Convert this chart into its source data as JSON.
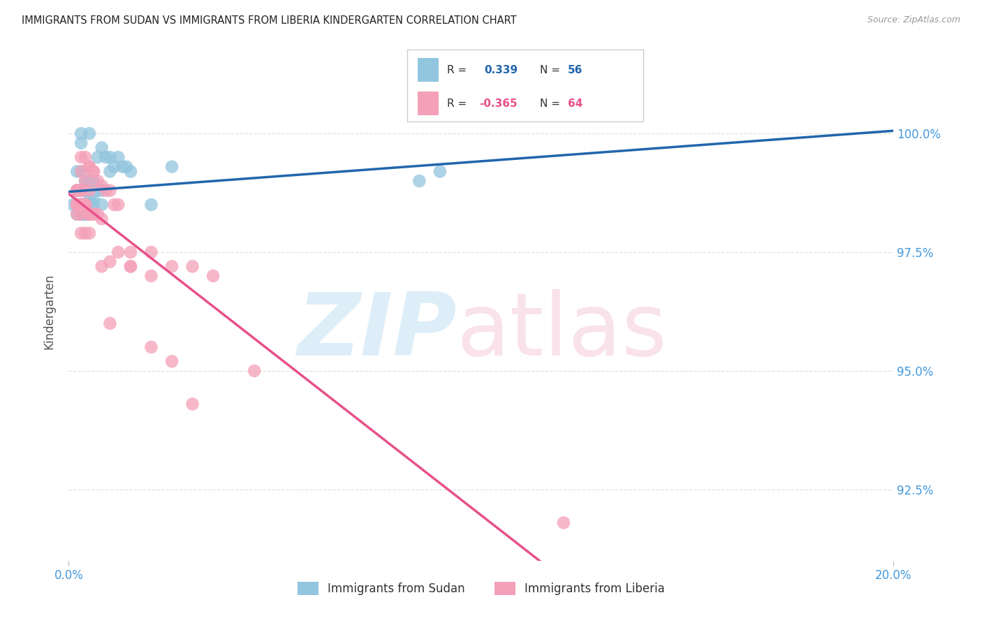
{
  "title": "IMMIGRANTS FROM SUDAN VS IMMIGRANTS FROM LIBERIA KINDERGARTEN CORRELATION CHART",
  "source": "Source: ZipAtlas.com",
  "ylabel": "Kindergarten",
  "y_ticks": [
    92.5,
    95.0,
    97.5,
    100.0
  ],
  "y_tick_labels": [
    "92.5%",
    "95.0%",
    "97.5%",
    "100.0%"
  ],
  "xlim": [
    0.0,
    20.0
  ],
  "ylim": [
    91.0,
    101.5
  ],
  "legend_sudan_R": "0.339",
  "legend_sudan_N": "56",
  "legend_liberia_R": "-0.365",
  "legend_liberia_N": "64",
  "color_sudan": "#92c5de",
  "color_liberia": "#f4a0b8",
  "color_sudan_line": "#2166ac",
  "color_liberia_line": "#e8508a",
  "color_title": "#222222",
  "color_source": "#999999",
  "color_axis_blue": "#4499dd",
  "color_grid": "#e0e0e0",
  "sudan_x": [
    0.3,
    0.3,
    0.5,
    0.7,
    0.8,
    0.9,
    1.0,
    1.1,
    1.2,
    1.3,
    1.4,
    1.5,
    0.2,
    0.3,
    0.4,
    0.5,
    0.6,
    0.7,
    0.8,
    0.4,
    0.5,
    0.6,
    0.3,
    0.4,
    0.5,
    0.6,
    0.2,
    0.3,
    0.4,
    0.5,
    0.3,
    0.4,
    0.3,
    0.2,
    0.3,
    0.3,
    0.4,
    0.2,
    0.3,
    0.2,
    0.2,
    0.3,
    0.2,
    0.2,
    0.1,
    0.2,
    0.2,
    2.5,
    0.8,
    1.0,
    2.0,
    0.3,
    0.4,
    9.0,
    8.5,
    0.5
  ],
  "sudan_y": [
    100.0,
    99.8,
    100.0,
    99.5,
    99.7,
    99.5,
    99.5,
    99.3,
    99.5,
    99.3,
    99.3,
    99.2,
    99.2,
    99.2,
    99.0,
    99.0,
    99.0,
    98.8,
    98.8,
    98.8,
    98.6,
    98.6,
    98.5,
    98.5,
    98.5,
    98.5,
    98.5,
    98.3,
    98.3,
    98.3,
    98.3,
    98.3,
    98.5,
    98.5,
    98.5,
    98.5,
    98.3,
    98.8,
    98.5,
    98.8,
    98.5,
    98.3,
    98.5,
    98.8,
    98.5,
    98.5,
    98.3,
    99.3,
    98.5,
    99.2,
    98.5,
    98.5,
    98.5,
    99.2,
    99.0,
    98.3
  ],
  "liberia_x": [
    0.3,
    0.4,
    0.5,
    0.5,
    0.6,
    0.6,
    0.7,
    0.8,
    0.9,
    1.0,
    1.1,
    1.2,
    0.3,
    0.4,
    0.5,
    0.6,
    0.7,
    0.8,
    0.4,
    0.5,
    0.6,
    0.3,
    0.4,
    0.3,
    0.5,
    0.4,
    0.3,
    0.4,
    0.3,
    0.5,
    0.2,
    0.3,
    0.2,
    0.3,
    0.4,
    0.2,
    0.3,
    0.2,
    0.2,
    0.3,
    0.2,
    0.2,
    0.2,
    0.3,
    0.3,
    0.4,
    0.5,
    2.5,
    3.0,
    1.5,
    2.0,
    1.5,
    2.0,
    3.5,
    1.0,
    1.5,
    4.5,
    2.0,
    2.5,
    1.0,
    3.0,
    0.8,
    1.2,
    12.0
  ],
  "liberia_y": [
    99.5,
    99.5,
    99.3,
    99.3,
    99.2,
    99.2,
    99.0,
    98.9,
    98.8,
    98.8,
    98.5,
    98.5,
    98.5,
    98.5,
    98.3,
    98.3,
    98.3,
    98.2,
    98.5,
    98.3,
    98.3,
    98.8,
    98.5,
    98.5,
    98.3,
    98.5,
    99.2,
    99.0,
    98.8,
    98.8,
    98.8,
    98.8,
    98.5,
    98.5,
    98.5,
    98.5,
    98.5,
    98.5,
    98.8,
    98.3,
    98.3,
    98.5,
    98.8,
    98.5,
    97.9,
    97.9,
    97.9,
    97.2,
    97.2,
    97.5,
    97.5,
    97.2,
    97.0,
    97.0,
    97.3,
    97.2,
    95.0,
    95.5,
    95.2,
    96.0,
    94.3,
    97.2,
    97.5,
    91.8
  ]
}
